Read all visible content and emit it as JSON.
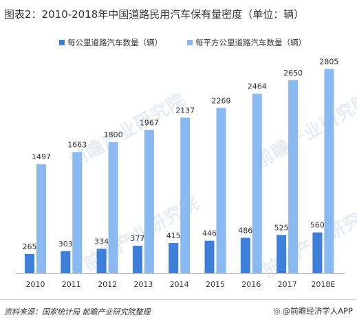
{
  "title": "图表2：2010-2018年中国道路民用汽车保有量密度（单位：辆）",
  "watermark": "前瞻产业研究院",
  "source": "资料来源：国家统计局 前瞻产业研究院整理",
  "brand": "@前瞻经济学人APP",
  "colors": {
    "series1": "#3d7fd9",
    "series2": "#8ab8f0"
  },
  "chart_data": {
    "type": "bar",
    "title": "图表2：2010-2018年中国道路民用汽车保有量密度（单位：辆）",
    "categories": [
      "2010",
      "2011",
      "2012",
      "2013",
      "2014",
      "2015",
      "2016",
      "2017",
      "2018E"
    ],
    "series": [
      {
        "name": "每公里道路汽车数量（辆）",
        "values": [
          265,
          303,
          334,
          377,
          415,
          446,
          486,
          525,
          560
        ]
      },
      {
        "name": "每平方公里道路汽车数量（辆）",
        "values": [
          1497,
          1663,
          1800,
          1967,
          2137,
          2269,
          2464,
          2650,
          2805
        ]
      }
    ],
    "ylim": [
      0,
      3000
    ],
    "grid": false,
    "legend": "top"
  }
}
